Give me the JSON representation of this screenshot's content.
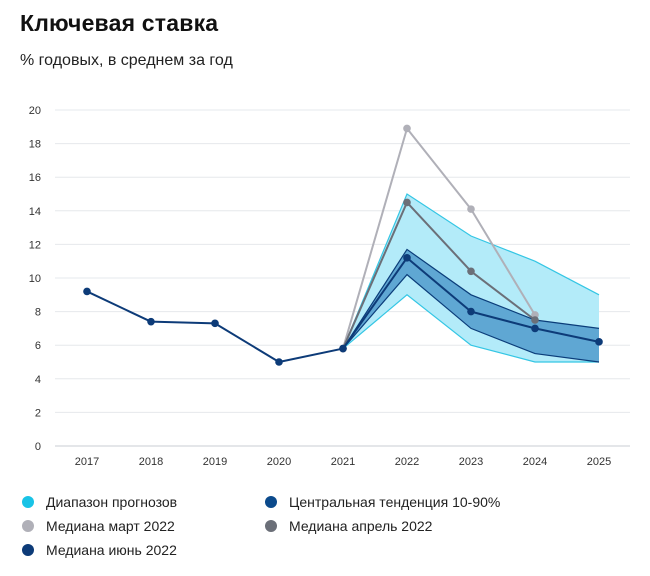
{
  "header": {
    "title": "Ключевая ставка",
    "subtitle": "% годовых, в среднем за год"
  },
  "chart_data": {
    "type": "line",
    "title": "Ключевая ставка",
    "subtitle": "% годовых, в среднем за год",
    "xlabel": "",
    "ylabel": "",
    "x": [
      "2017",
      "2018",
      "2019",
      "2020",
      "2021",
      "2022",
      "2023",
      "2024",
      "2025"
    ],
    "ylim": [
      0,
      20
    ],
    "yticks": [
      0,
      2,
      4,
      6,
      8,
      10,
      12,
      14,
      16,
      18,
      20
    ],
    "grid": true,
    "legend_position": "bottom",
    "bands": [
      {
        "name": "Диапазон прогнозов",
        "color": "#34c6e4",
        "fill": "#b3ebf9",
        "x": [
          "2021",
          "2022",
          "2023",
          "2024",
          "2025"
        ],
        "low": [
          5.8,
          9.0,
          6.0,
          5.0,
          5.0
        ],
        "high": [
          5.8,
          15.0,
          12.5,
          11.0,
          9.0
        ]
      },
      {
        "name": "Центральная тенденция 10-90%",
        "color": "#0b3d7a",
        "fill": "#5fa7d3",
        "x": [
          "2021",
          "2022",
          "2023",
          "2024",
          "2025"
        ],
        "low": [
          5.8,
          10.2,
          7.0,
          5.5,
          5.0
        ],
        "high": [
          5.8,
          11.7,
          9.0,
          7.5,
          7.0
        ]
      }
    ],
    "series": [
      {
        "name": "Медиана март 2022",
        "color": "#b0b0b8",
        "x": [
          "2021",
          "2022",
          "2023",
          "2024"
        ],
        "values": [
          5.8,
          18.9,
          14.1,
          7.8
        ]
      },
      {
        "name": "Медиана апрель 2022",
        "color": "#6b6f78",
        "x": [
          "2021",
          "2022",
          "2023",
          "2024"
        ],
        "values": [
          5.8,
          14.5,
          10.4,
          7.5
        ]
      },
      {
        "name": "Медиана июнь 2022",
        "color": "#0d3b78",
        "x": [
          "2017",
          "2018",
          "2019",
          "2020",
          "2021",
          "2022",
          "2023",
          "2024",
          "2025"
        ],
        "values": [
          9.2,
          7.4,
          7.3,
          5.0,
          5.8,
          11.2,
          8.0,
          7.0,
          6.2
        ]
      }
    ]
  },
  "legend": {
    "items": [
      {
        "label": "Диапазон прогнозов",
        "color": "#19c3e6"
      },
      {
        "label": "Центральная тенденция 10-90%",
        "color": "#0b4a8c"
      },
      {
        "label": "Медиана март 2022",
        "color": "#b0b0b8"
      },
      {
        "label": "Медиана апрель 2022",
        "color": "#6b6f78"
      },
      {
        "label": "Медиана июнь 2022",
        "color": "#0d3b78"
      }
    ]
  }
}
